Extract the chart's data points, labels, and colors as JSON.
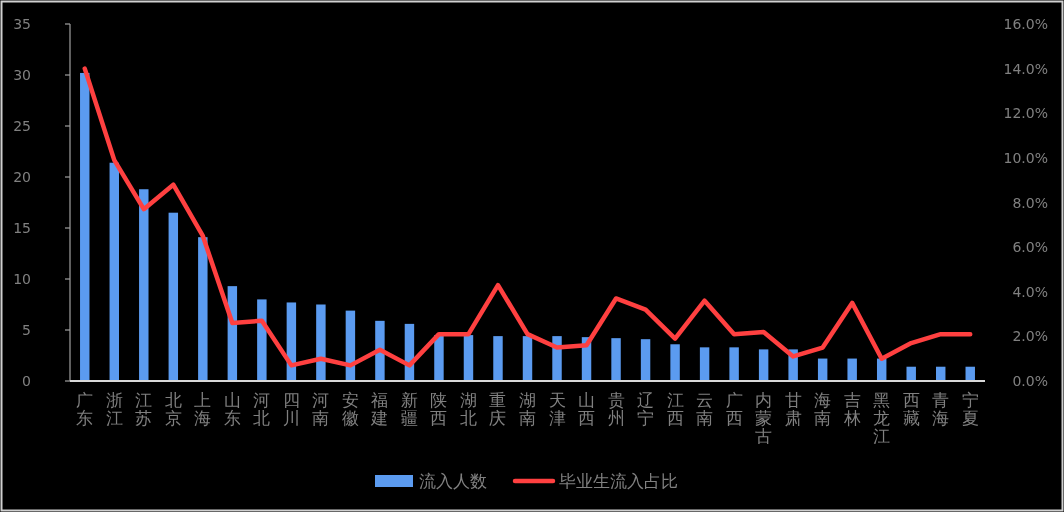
{
  "chart_data": {
    "type": "bar",
    "categories": [
      "广东",
      "浙江",
      "江苏",
      "北京",
      "上海",
      "山东",
      "河北",
      "四川",
      "河南",
      "安徽",
      "福建",
      "新疆",
      "陕西",
      "湖北",
      "重庆",
      "湖南",
      "天津",
      "山西",
      "贵州",
      "辽宁",
      "江西",
      "云南",
      "广西",
      "内蒙古",
      "甘肃",
      "海南",
      "吉林",
      "黑龙江",
      "西藏",
      "青海",
      "宁夏"
    ],
    "series": [
      {
        "name": "流入人数",
        "color": "#5b9bf0",
        "values": [
          30.2,
          21.4,
          18.8,
          16.5,
          14.1,
          9.3,
          8.0,
          7.7,
          7.5,
          6.9,
          5.9,
          5.6,
          4.5,
          4.5,
          4.4,
          4.4,
          4.4,
          4.3,
          4.2,
          4.1,
          3.6,
          3.3,
          3.3,
          3.1,
          3.1,
          2.2,
          2.2,
          2.2,
          1.4,
          1.4,
          1.4
        ]
      },
      {
        "name": "毕业生流入占比",
        "type": "line",
        "axis": "y2",
        "color": "#ff4040",
        "values": [
          14.0,
          9.9,
          7.7,
          8.8,
          6.5,
          2.6,
          2.7,
          0.7,
          1.0,
          0.7,
          1.4,
          0.7,
          2.1,
          2.1,
          4.3,
          2.1,
          1.5,
          1.6,
          3.7,
          3.2,
          1.9,
          3.6,
          2.1,
          2.2,
          1.1,
          1.5,
          3.5,
          1.0,
          1.7,
          2.1,
          2.1
        ]
      }
    ],
    "ylim": [
      0,
      35
    ],
    "yticks": [
      0,
      5,
      10,
      15,
      20,
      25,
      30,
      35
    ],
    "y2lim": [
      0,
      16
    ],
    "y2ticks": [
      {
        "value": 0,
        "label": "0.0%"
      },
      {
        "value": 2,
        "label": "2.0%"
      },
      {
        "value": 4,
        "label": "4.0%"
      },
      {
        "value": 6,
        "label": "6.0%"
      },
      {
        "value": 8,
        "label": "8.0%"
      },
      {
        "value": 10,
        "label": "10.0%"
      },
      {
        "value": 12,
        "label": "12.0%"
      },
      {
        "value": 14,
        "label": "14.0%"
      },
      {
        "value": 16,
        "label": "16.0%"
      }
    ],
    "grid": false,
    "legend": "bottom",
    "marker": "none",
    "line_style": "solid"
  }
}
